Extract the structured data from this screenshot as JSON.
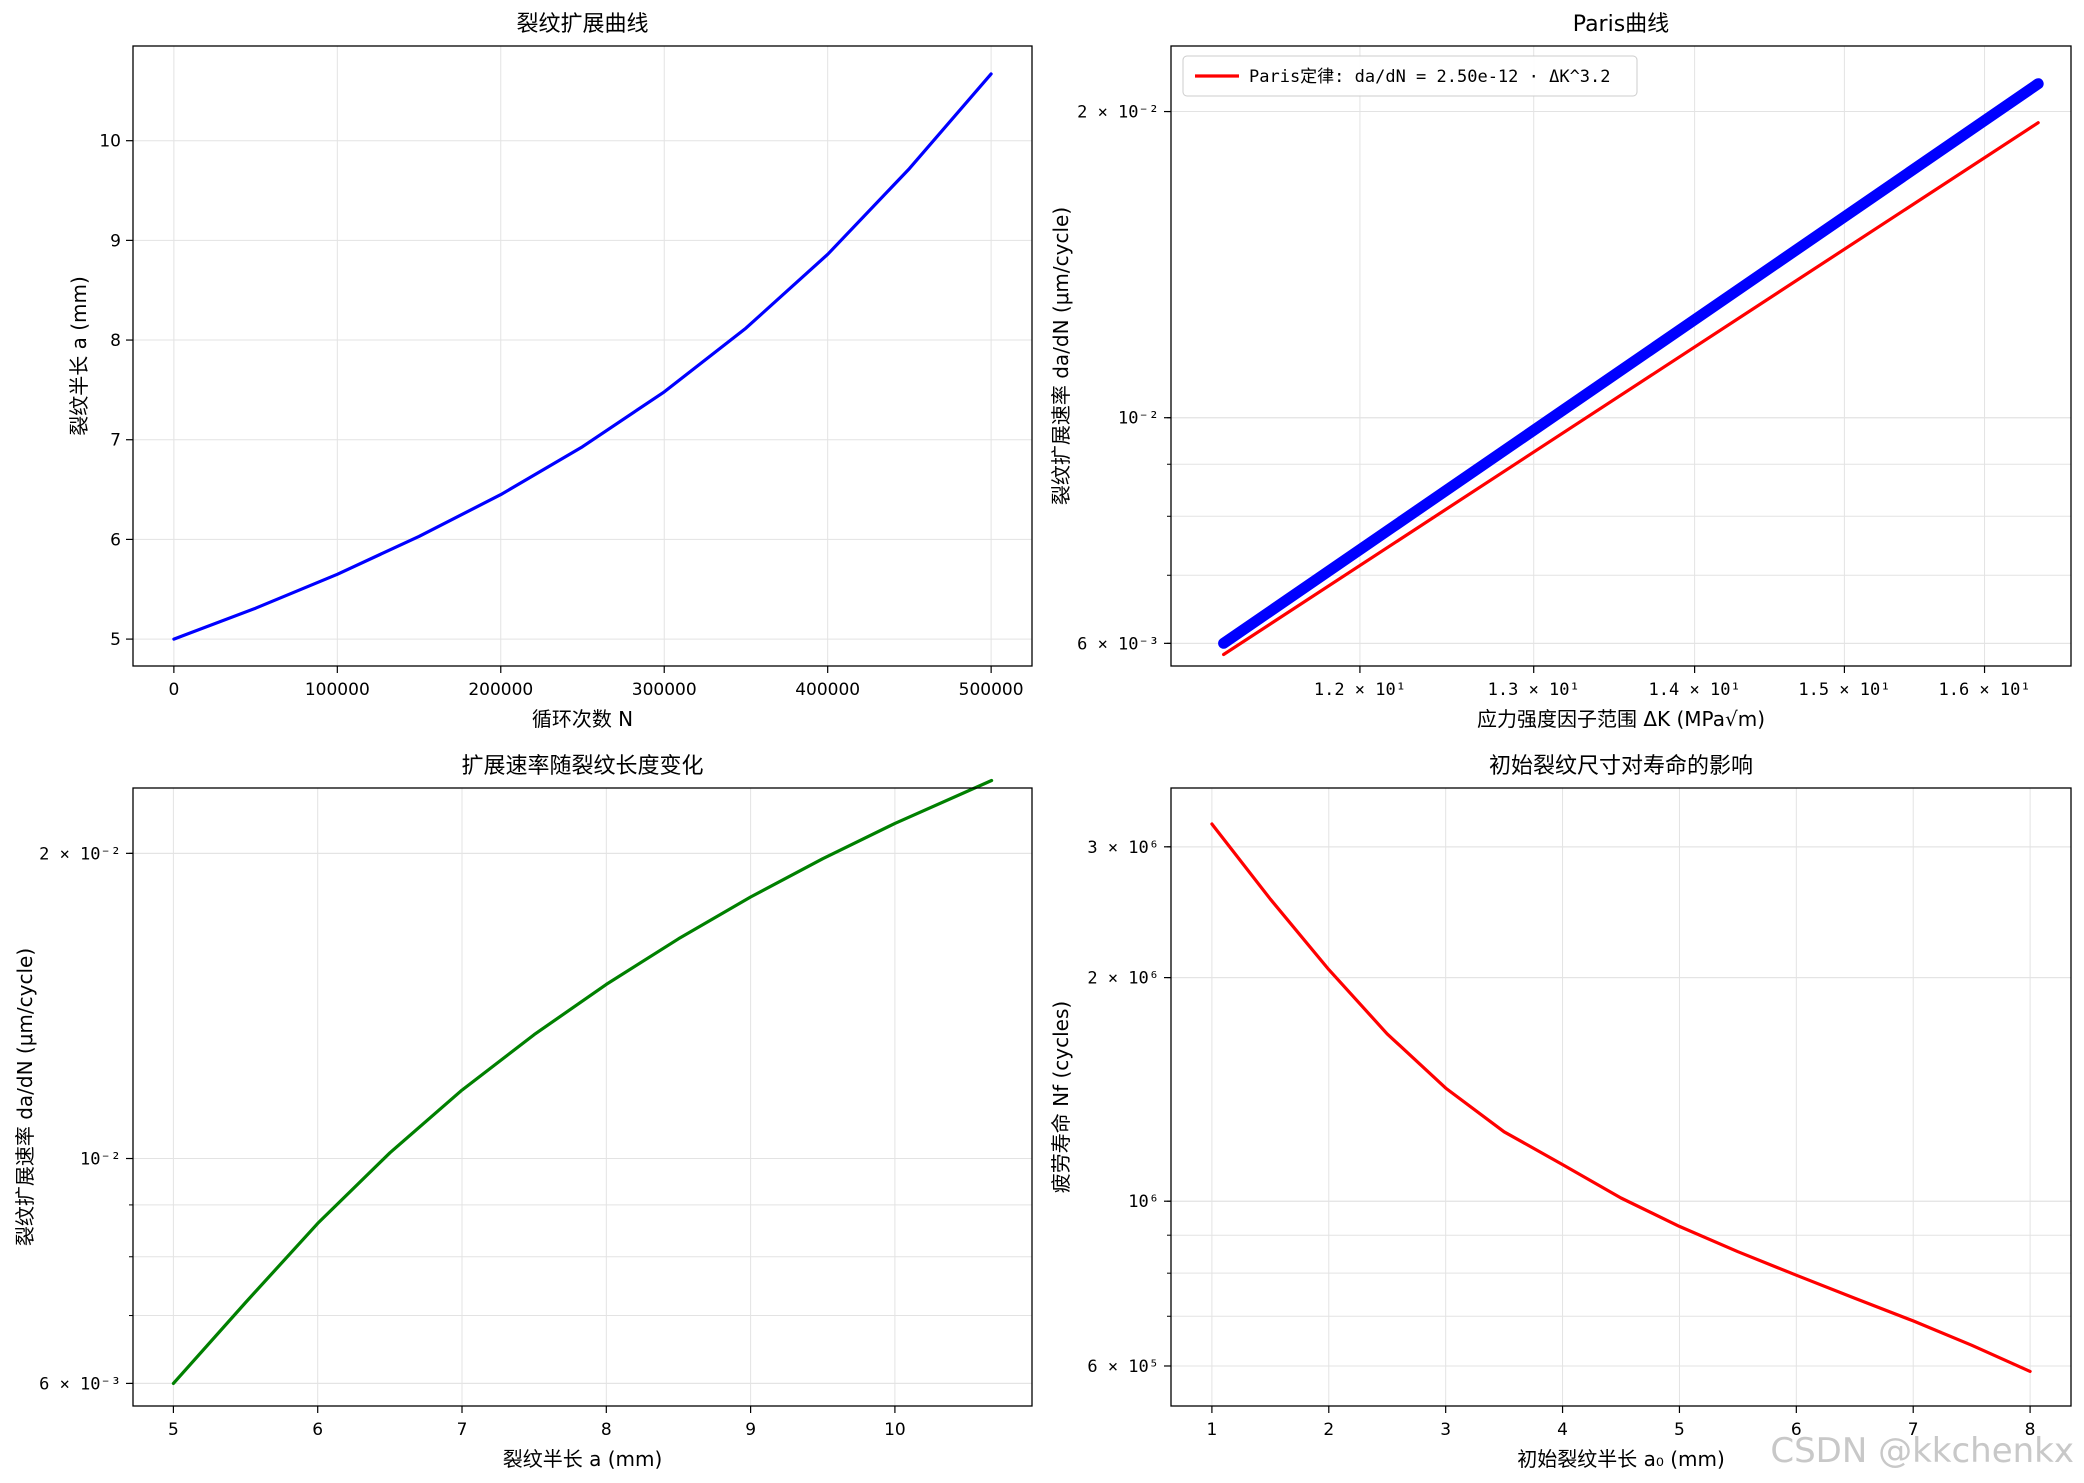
{
  "watermark": "CSDN @kkchenkx",
  "chart_data": [
    {
      "type": "line",
      "title": "裂纹扩展曲线",
      "xlabel": "循环次数 N",
      "ylabel": "裂纹半长 a (mm)",
      "x_ticks": [
        "0",
        "100000",
        "200000",
        "300000",
        "400000",
        "500000"
      ],
      "y_ticks": [
        "5",
        "6",
        "7",
        "8",
        "9",
        "10"
      ],
      "xlim": [
        -25000,
        525000
      ],
      "ylim": [
        4.73,
        10.95
      ],
      "grid": true,
      "series": [
        {
          "color": "#0000ff",
          "x": [
            0,
            50000,
            100000,
            150000,
            200000,
            250000,
            300000,
            350000,
            400000,
            450000,
            500000
          ],
          "y": [
            5.0,
            5.31,
            5.65,
            6.03,
            6.45,
            6.93,
            7.48,
            8.12,
            8.86,
            9.72,
            10.67
          ]
        }
      ]
    },
    {
      "type": "line",
      "title": "Paris曲线",
      "xlabel": "应力强度因子范围 ΔK (MPa√m)",
      "ylabel": "裂纹扩展速率 da/dN (μm/cycle)",
      "x_scale": "log",
      "y_scale": "log",
      "x_ticks": [
        "1.2 × 10¹",
        "1.3 × 10¹",
        "1.4 × 10¹",
        "1.5 × 10¹",
        "1.6 × 10¹"
      ],
      "y_ticks": [
        "6 × 10⁻³",
        "10⁻²",
        "2 × 10⁻²"
      ],
      "xlim": [
        11.0,
        16.65
      ],
      "ylim": [
        0.0057,
        0.0232
      ],
      "grid": true,
      "legend": "upper-left",
      "series": [
        {
          "name": "Paris定律: da/dN = 2.50e-12 · ΔK^3.2",
          "color": "#ff0000",
          "x": [
            11.27,
            16.4
          ],
          "y": [
            0.00585,
            0.0195
          ]
        },
        {
          "color": "#0000ff",
          "x": [
            11.27,
            16.4
          ],
          "y": [
            0.006,
            0.0213
          ]
        }
      ]
    },
    {
      "type": "line",
      "title": "扩展速率随裂纹长度变化",
      "xlabel": "裂纹半长 a (mm)",
      "ylabel": "裂纹扩展速率 da/dN (μm/cycle)",
      "y_scale": "log",
      "x_ticks": [
        "5",
        "6",
        "7",
        "8",
        "9",
        "10"
      ],
      "y_ticks": [
        "6 × 10⁻³",
        "10⁻²",
        "2 × 10⁻²"
      ],
      "xlim": [
        4.72,
        10.95
      ],
      "ylim": [
        0.0057,
        0.0232
      ],
      "grid": true,
      "series": [
        {
          "color": "#008000",
          "x": [
            5.0,
            5.5,
            6.0,
            6.5,
            7.0,
            7.5,
            8.0,
            8.5,
            9.0,
            9.5,
            10.0,
            10.67
          ],
          "y": [
            0.006,
            0.00721,
            0.00863,
            0.01013,
            0.01168,
            0.01325,
            0.01485,
            0.01647,
            0.01811,
            0.01976,
            0.02141,
            0.0236
          ]
        }
      ]
    },
    {
      "type": "line",
      "title": "初始裂纹尺寸对寿命的影响",
      "xlabel": "初始裂纹半长 a₀ (mm)",
      "ylabel": "疲劳寿命 Nf (cycles)",
      "y_scale": "log",
      "x_ticks": [
        "1",
        "2",
        "3",
        "4",
        "5",
        "6",
        "7",
        "8"
      ],
      "y_ticks": [
        "6 × 10⁵",
        "10⁶",
        "2 × 10⁶",
        "3 × 10⁶"
      ],
      "xlim": [
        0.65,
        8.35
      ],
      "ylim": [
        530000,
        3600000
      ],
      "grid": true,
      "series": [
        {
          "color": "#ff0000",
          "x": [
            1.0,
            1.5,
            2.0,
            2.5,
            3.0,
            3.5,
            4.0,
            4.5,
            5.0,
            5.5,
            6.0,
            6.5,
            7.0,
            7.5,
            8.0
          ],
          "y": [
            3220000,
            2550000,
            2050000,
            1680000,
            1420000,
            1240000,
            1120000,
            1010000,
            925000,
            855000,
            795000,
            740000,
            690000,
            640000,
            590000
          ]
        }
      ]
    }
  ]
}
